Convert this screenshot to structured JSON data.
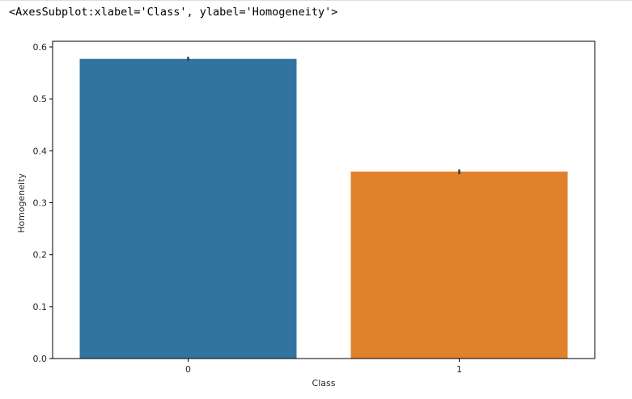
{
  "output": {
    "repr_text": "<AxesSubplot:xlabel='Class', ylabel='Homogeneity'>"
  },
  "chart_data": {
    "type": "bar",
    "title": "",
    "xlabel": "Class",
    "ylabel": "Homogeneity",
    "categories": [
      "0",
      "1"
    ],
    "values": [
      0.577,
      0.36
    ],
    "error_bars": [
      [
        0.573,
        0.581
      ],
      [
        0.355,
        0.364
      ]
    ],
    "ylim": [
      0,
      0.6
    ],
    "yticks": [
      0.0,
      0.1,
      0.2,
      0.3,
      0.4,
      0.5,
      0.6
    ],
    "ytick_labels": [
      "0.0",
      "0.1",
      "0.2",
      "0.3",
      "0.4",
      "0.5",
      "0.6"
    ],
    "colors": [
      "#3274a1",
      "#e1812c"
    ],
    "error_bar_color": "#3f3f3f",
    "grid": false,
    "legend": "none"
  }
}
